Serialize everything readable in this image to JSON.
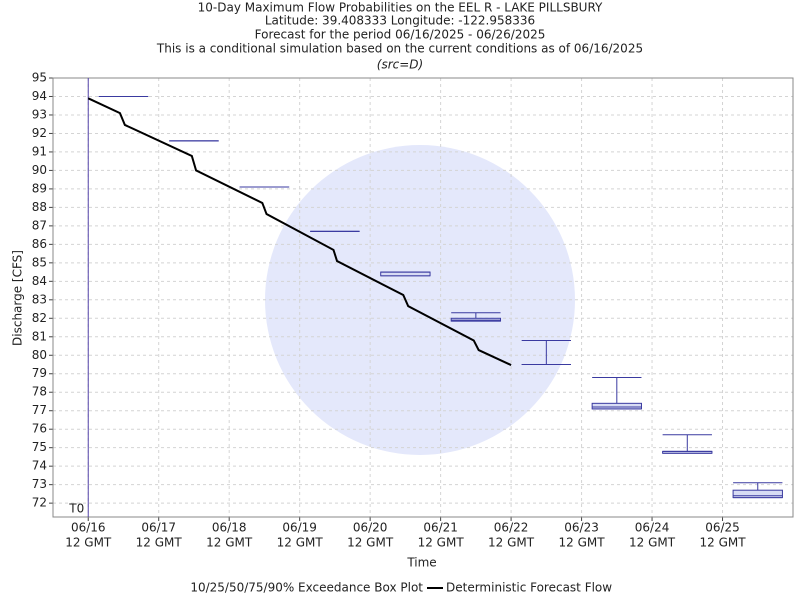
{
  "chart_data": {
    "type": "box",
    "title_lines": [
      "10-Day Maximum Flow Probabilities on the EEL R - LAKE PILLSBURY",
      "Latitude: 39.408333 Longitude: -122.958336",
      "Forecast for the period 06/16/2025 - 06/26/2025",
      "This is a conditional simulation based on the current conditions as of 06/16/2025"
    ],
    "source_note": "(src=D)",
    "xlabel": "Time",
    "ylabel": "Discharge [CFS]",
    "xlim": [
      0,
      10.5
    ],
    "ylim": [
      71.25,
      95
    ],
    "yticks": [
      72,
      73,
      74,
      75,
      76,
      77,
      78,
      79,
      80,
      81,
      82,
      83,
      84,
      85,
      86,
      87,
      88,
      89,
      90,
      91,
      92,
      93,
      94,
      95
    ],
    "xticks": [
      {
        "value": 0.5,
        "label": "06/16"
      },
      {
        "value": 1.5,
        "label": "06/17"
      },
      {
        "value": 2.5,
        "label": "06/18"
      },
      {
        "value": 3.5,
        "label": "06/19"
      },
      {
        "value": 4.5,
        "label": "06/20"
      },
      {
        "value": 5.5,
        "label": "06/21"
      },
      {
        "value": 6.5,
        "label": "06/22"
      },
      {
        "value": 7.5,
        "label": "06/23"
      },
      {
        "value": 8.5,
        "label": "06/24"
      },
      {
        "value": 9.5,
        "label": "06/25"
      }
    ],
    "xtick_time": "12 GMT",
    "grid": true,
    "start_marker": {
      "x": 0.5,
      "label": "T0",
      "color": "#5544aa"
    },
    "boxes": {
      "name": "10/25/50/75/90% Exceedance Box Plot",
      "color": "#3a3aa0",
      "x": [
        1,
        2,
        3,
        4,
        5,
        6,
        7,
        8,
        9,
        10
      ],
      "p10": [
        94.0,
        91.6,
        89.1,
        86.7,
        84.3,
        81.85,
        79.5,
        77.1,
        74.7,
        72.3
      ],
      "p25": [
        94.0,
        91.6,
        89.1,
        86.7,
        84.3,
        81.85,
        79.5,
        77.1,
        74.7,
        72.3
      ],
      "p50": [
        94.0,
        91.6,
        89.1,
        86.7,
        84.5,
        81.9,
        79.5,
        77.2,
        74.8,
        72.4
      ],
      "p75": [
        94.0,
        91.6,
        89.1,
        86.7,
        84.5,
        82.0,
        79.5,
        77.4,
        74.8,
        72.7
      ],
      "p90": [
        94.0,
        91.6,
        89.1,
        86.7,
        84.5,
        82.3,
        80.8,
        78.8,
        75.7,
        73.1
      ]
    },
    "line": {
      "name": "Deterministic Forecast Flow",
      "color": "#000000",
      "x": [
        0.5,
        0.95,
        1.02,
        1.97,
        2.03,
        2.97,
        3.03,
        3.98,
        4.03,
        4.97,
        5.04,
        5.97,
        6.04,
        6.5
      ],
      "values": [
        93.9,
        93.1,
        92.46,
        90.78,
        90.0,
        88.24,
        87.64,
        85.7,
        85.1,
        83.26,
        82.66,
        80.8,
        80.28,
        79.47
      ]
    }
  }
}
